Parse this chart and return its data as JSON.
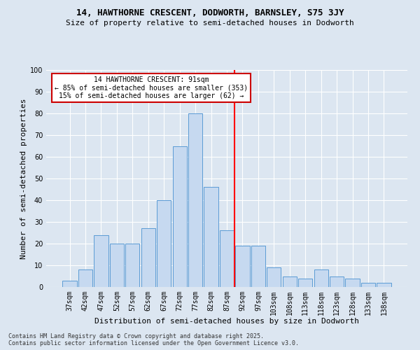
{
  "title": "14, HAWTHORNE CRESCENT, DODWORTH, BARNSLEY, S75 3JY",
  "subtitle": "Size of property relative to semi-detached houses in Dodworth",
  "xlabel": "Distribution of semi-detached houses by size in Dodworth",
  "ylabel": "Number of semi-detached properties",
  "categories": [
    "37sqm",
    "42sqm",
    "47sqm",
    "52sqm",
    "57sqm",
    "62sqm",
    "67sqm",
    "72sqm",
    "77sqm",
    "82sqm",
    "87sqm",
    "92sqm",
    "97sqm",
    "103sqm",
    "108sqm",
    "113sqm",
    "118sqm",
    "123sqm",
    "128sqm",
    "133sqm",
    "138sqm"
  ],
  "values": [
    3,
    8,
    24,
    20,
    20,
    27,
    40,
    65,
    80,
    46,
    26,
    19,
    19,
    9,
    5,
    4,
    8,
    5,
    4,
    2,
    2
  ],
  "bar_color": "#c6d9f0",
  "bar_edge_color": "#5b9bd5",
  "background_color": "#dce6f1",
  "plot_bg_color": "#dce6f1",
  "grid_color": "#ffffff",
  "vline_x_index": 11,
  "vline_color": "#ff0000",
  "annotation_title": "14 HAWTHORNE CRESCENT: 91sqm",
  "annotation_line1": "← 85% of semi-detached houses are smaller (353)",
  "annotation_line2": "15% of semi-detached houses are larger (62) →",
  "annotation_box_color": "#ffffff",
  "annotation_box_edge": "#cc0000",
  "footnote1": "Contains HM Land Registry data © Crown copyright and database right 2025.",
  "footnote2": "Contains public sector information licensed under the Open Government Licence v3.0.",
  "ylim": [
    0,
    100
  ],
  "yticks": [
    0,
    10,
    20,
    30,
    40,
    50,
    60,
    70,
    80,
    90,
    100
  ],
  "title_fontsize": 9,
  "subtitle_fontsize": 8,
  "xlabel_fontsize": 8,
  "ylabel_fontsize": 8,
  "tick_fontsize": 7,
  "annot_fontsize": 7,
  "footnote_fontsize": 6
}
